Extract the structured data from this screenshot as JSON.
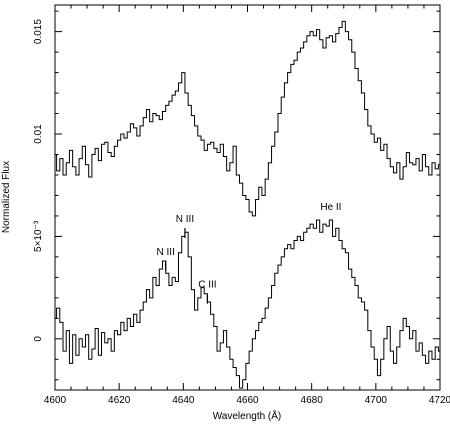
{
  "chart_data": {
    "type": "line",
    "title": "",
    "xlabel": "Wavelength (Å)",
    "ylabel": "Normalized Flux",
    "xlim": [
      4600,
      4720
    ],
    "ylim": [
      -0.0025,
      0.0163
    ],
    "xticks": [
      4600,
      4620,
      4640,
      4660,
      4680,
      4700,
      4720
    ],
    "xtick_labels": [
      "4600",
      "4620",
      "4640",
      "4660",
      "4680",
      "4700",
      "4720"
    ],
    "yticks": [
      0,
      0.005,
      0.01,
      0.015
    ],
    "ytick_labels": [
      "0",
      "5×10⁻³",
      "0.01",
      "0.015"
    ],
    "grid": false,
    "legend": "none",
    "step_style": "steps-mid",
    "annotations": [
      {
        "text": "N III",
        "x": 4634.5,
        "y": 0.0041
      },
      {
        "text": "N III",
        "x": 4640.5,
        "y": 0.0057
      },
      {
        "text": "C III",
        "x": 4647.5,
        "y": 0.0025
      },
      {
        "text": "He II",
        "x": 4686.0,
        "y": 0.0063
      }
    ],
    "series": [
      {
        "x": [
          4600,
          4601,
          4602,
          4603,
          4604,
          4605,
          4606,
          4607,
          4608,
          4609,
          4610,
          4611,
          4612,
          4613,
          4614,
          4615,
          4616,
          4617,
          4618,
          4619,
          4620,
          4621,
          4622,
          4623,
          4624,
          4625,
          4626,
          4627,
          4628,
          4629,
          4630,
          4631,
          4632,
          4633,
          4634,
          4635,
          4636,
          4637,
          4638,
          4639,
          4640,
          4641,
          4642,
          4643,
          4644,
          4645,
          4646,
          4647,
          4648,
          4649,
          4650,
          4651,
          4652,
          4653,
          4654,
          4655,
          4656,
          4657,
          4658,
          4659,
          4660,
          4661,
          4662,
          4663,
          4664,
          4665,
          4666,
          4667,
          4668,
          4669,
          4670,
          4671,
          4672,
          4673,
          4674,
          4675,
          4676,
          4677,
          4678,
          4679,
          4680,
          4681,
          4682,
          4683,
          4684,
          4685,
          4686,
          4687,
          4688,
          4689,
          4690,
          4691,
          4692,
          4693,
          4694,
          4695,
          4696,
          4697,
          4698,
          4699,
          4700,
          4701,
          4702,
          4703,
          4704,
          4705,
          4706,
          4707,
          4708,
          4709,
          4710,
          4711,
          4712,
          4713,
          4714,
          4715,
          4716,
          4717,
          4718,
          4719,
          4720
        ],
        "values": [
          0.009,
          0.0082,
          0.0088,
          0.008,
          0.0086,
          0.0092,
          0.0084,
          0.008,
          0.0088,
          0.0094,
          0.0085,
          0.0079,
          0.009,
          0.0093,
          0.0087,
          0.0095,
          0.0096,
          0.0091,
          0.0089,
          0.0094,
          0.0097,
          0.01,
          0.0098,
          0.0101,
          0.0105,
          0.0103,
          0.0099,
          0.0104,
          0.0108,
          0.0112,
          0.0106,
          0.011,
          0.0109,
          0.0107,
          0.0111,
          0.0114,
          0.0116,
          0.0119,
          0.0121,
          0.0125,
          0.013,
          0.012,
          0.0114,
          0.0109,
          0.0104,
          0.0099,
          0.0097,
          0.0092,
          0.0095,
          0.0096,
          0.0093,
          0.0091,
          0.0095,
          0.0089,
          0.0082,
          0.0086,
          0.0094,
          0.008,
          0.0076,
          0.007,
          0.0068,
          0.0062,
          0.006,
          0.0068,
          0.0074,
          0.007,
          0.0078,
          0.0086,
          0.0094,
          0.0101,
          0.011,
          0.0118,
          0.0125,
          0.013,
          0.0134,
          0.0136,
          0.014,
          0.0142,
          0.0145,
          0.0148,
          0.015,
          0.0148,
          0.0151,
          0.0146,
          0.0142,
          0.0147,
          0.0148,
          0.0145,
          0.0149,
          0.0152,
          0.0155,
          0.015,
          0.0146,
          0.014,
          0.0132,
          0.0126,
          0.012,
          0.0112,
          0.0104,
          0.01,
          0.0096,
          0.0098,
          0.0092,
          0.0095,
          0.0088,
          0.0084,
          0.0081,
          0.0086,
          0.0078,
          0.0084,
          0.0091,
          0.0086,
          0.0085,
          0.0088,
          0.0082,
          0.009,
          0.0084,
          0.008,
          0.0086,
          0.0083,
          0.0085
        ]
      },
      {
        "x": [
          4600,
          4601,
          4602,
          4603,
          4604,
          4605,
          4606,
          4607,
          4608,
          4609,
          4610,
          4611,
          4612,
          4613,
          4614,
          4615,
          4616,
          4617,
          4618,
          4619,
          4620,
          4621,
          4622,
          4623,
          4624,
          4625,
          4626,
          4627,
          4628,
          4629,
          4630,
          4631,
          4632,
          4633,
          4634,
          4635,
          4636,
          4637,
          4638,
          4639,
          4640,
          4641,
          4642,
          4643,
          4644,
          4645,
          4646,
          4647,
          4648,
          4649,
          4650,
          4651,
          4652,
          4653,
          4654,
          4655,
          4656,
          4657,
          4658,
          4659,
          4660,
          4661,
          4662,
          4663,
          4664,
          4665,
          4666,
          4667,
          4668,
          4669,
          4670,
          4671,
          4672,
          4673,
          4674,
          4675,
          4676,
          4677,
          4678,
          4679,
          4680,
          4681,
          4682,
          4683,
          4684,
          4685,
          4686,
          4687,
          4688,
          4689,
          4690,
          4691,
          4692,
          4693,
          4694,
          4695,
          4696,
          4697,
          4698,
          4699,
          4700,
          4701,
          4702,
          4703,
          4704,
          4705,
          4706,
          4707,
          4708,
          4709,
          4710,
          4711,
          4712,
          4713,
          4714,
          4715,
          4716,
          4717,
          4718,
          4719,
          4720
        ],
        "values": [
          0.001,
          0.0015,
          0.0008,
          -0.0006,
          0.0004,
          -0.0012,
          0.0002,
          -0.0008,
          0.0,
          -0.0004,
          0.0002,
          -0.001,
          -0.0005,
          0.0005,
          -0.0008,
          0.0003,
          -0.0002,
          0.0,
          -0.0006,
          0.0004,
          0.0002,
          0.0008,
          0.0004,
          0.001,
          0.0006,
          0.0012,
          0.0008,
          0.0014,
          0.0018,
          0.0024,
          0.002,
          0.003,
          0.0026,
          0.0034,
          0.0038,
          0.0032,
          0.0026,
          0.003,
          0.0028,
          0.0042,
          0.005,
          0.0052,
          0.004,
          0.0024,
          0.0014,
          0.002,
          0.0025,
          0.0022,
          0.0018,
          0.0012,
          0.0006,
          -0.0006,
          -0.0002,
          0.0004,
          -0.0004,
          -0.001,
          -0.0014,
          -0.0018,
          -0.0024,
          -0.002,
          -0.0012,
          -0.0006,
          0.0,
          0.0004,
          0.0008,
          0.001,
          0.0015,
          0.002,
          0.0026,
          0.0032,
          0.0036,
          0.004,
          0.0044,
          0.0046,
          0.0044,
          0.0048,
          0.005,
          0.0048,
          0.0052,
          0.0054,
          0.0056,
          0.0054,
          0.0058,
          0.0052,
          0.0056,
          0.0055,
          0.0058,
          0.005,
          0.0054,
          0.0048,
          0.0044,
          0.0042,
          0.0034,
          0.003,
          0.0026,
          0.002,
          0.0018,
          0.0014,
          0.0004,
          -0.0004,
          -0.001,
          -0.0018,
          -0.001,
          0.0,
          0.0006,
          -0.0006,
          -0.0012,
          -0.0004,
          0.0004,
          0.001,
          0.0006,
          0.0,
          0.0004,
          -0.0006,
          -0.0002,
          -0.0008,
          -0.0012,
          -0.0006,
          -0.001,
          -0.0004,
          -0.0006
        ]
      }
    ]
  }
}
